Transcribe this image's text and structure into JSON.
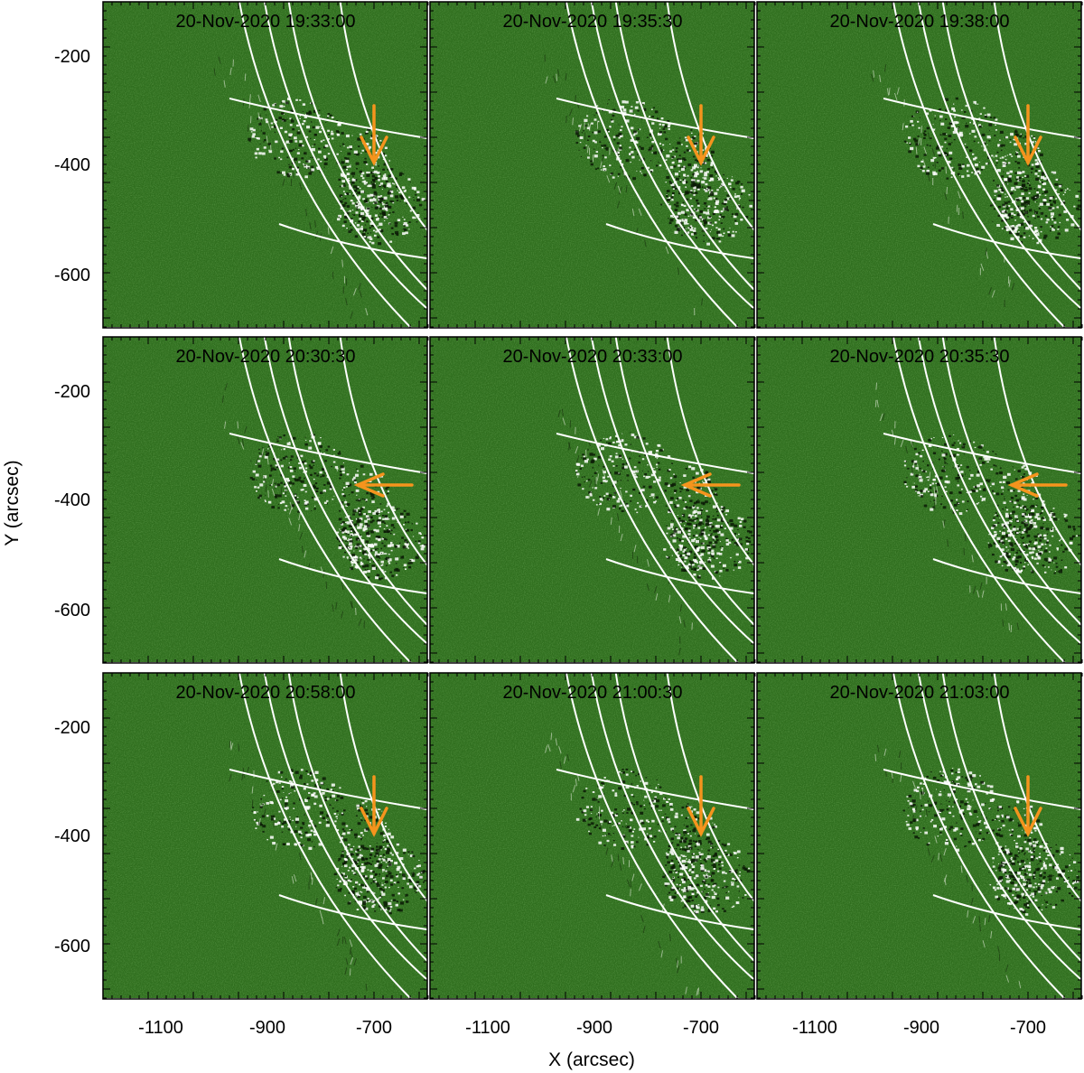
{
  "figure": {
    "xlabel": "X (arcsec)",
    "ylabel": "Y (arcsec)",
    "x_ticks": [
      "-1100",
      "-900",
      "-700"
    ],
    "y_ticks": [
      "-200",
      "-400",
      "-600"
    ],
    "background_color": "#2f6e1e",
    "grid_color": "#ffffff",
    "arrow_color": "#f5941d",
    "panels": [
      {
        "title": "20-Nov-2020 19:33:00",
        "arrow": "down"
      },
      {
        "title": "20-Nov-2020 19:35:30",
        "arrow": "down"
      },
      {
        "title": "20-Nov-2020 19:38:00",
        "arrow": "down"
      },
      {
        "title": "20-Nov-2020 20:30:30",
        "arrow": "left"
      },
      {
        "title": "20-Nov-2020 20:33:00",
        "arrow": "left"
      },
      {
        "title": "20-Nov-2020 20:35:30",
        "arrow": "left"
      },
      {
        "title": "20-Nov-2020 20:58:00",
        "arrow": "down"
      },
      {
        "title": "20-Nov-2020 21:00:30",
        "arrow": "down"
      },
      {
        "title": "20-Nov-2020 21:03:00",
        "arrow": "down"
      }
    ]
  }
}
